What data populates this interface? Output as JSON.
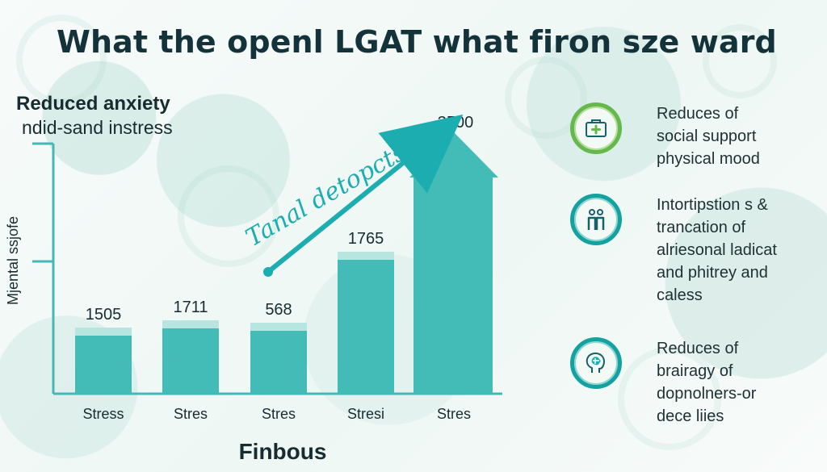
{
  "title": "What the openl LGAT what firon sze ward",
  "chart_data": {
    "type": "bar",
    "title": "What the openl LGAT what firon sze ward",
    "subtitle": "Reduced anxiety\nndid-sand instress",
    "subtitle_lines": [
      "Reduced anxiety",
      "ndid-sand instress"
    ],
    "ylabel": "Mjental ssjofe",
    "xlabel": "Finbous",
    "categories": [
      "Stress",
      "Stres",
      "Stres",
      "Stresi",
      "Stres"
    ],
    "values": [
      1505,
      1711,
      568,
      1765,
      3500
    ],
    "value_labels": [
      "1505",
      "1711",
      "568",
      "1765",
      "3500"
    ],
    "trend_label": "Tanal detopcts",
    "grid": false,
    "legend": "none"
  },
  "side_items": [
    {
      "icon": "medical-kit-icon",
      "lines": [
        "Reduces of",
        "social support",
        "physical mood"
      ]
    },
    {
      "icon": "support-figures-icon",
      "lines": [
        "Intortipstion s &",
        "trancation of",
        "alriesonal ladicat",
        "and phitrey and",
        "caless"
      ]
    },
    {
      "icon": "brain-head-icon",
      "lines": [
        "Reduces of",
        "brairagy of",
        "dopnolners-or",
        "dece liies"
      ]
    }
  ],
  "colors": {
    "bar": "#43bbb6",
    "bar_top": "#b6e6df",
    "axis": "#45b7b6",
    "text": "#172c31",
    "trend": "#1cadb0",
    "accent_green": "#65b84d",
    "accent_teal": "#14a2a1"
  }
}
